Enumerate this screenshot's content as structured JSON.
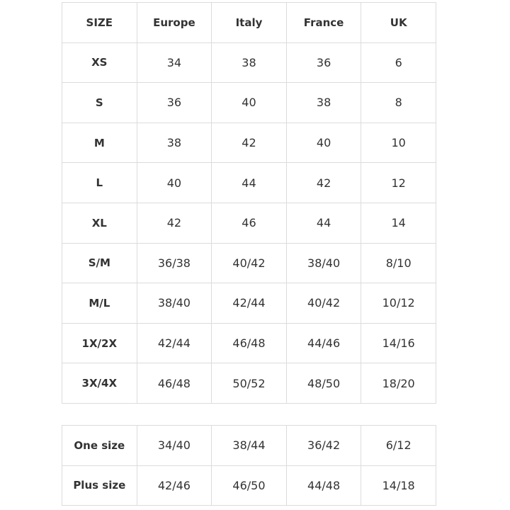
{
  "size_table": {
    "header": [
      "SIZE",
      "Europe",
      "Italy",
      "France",
      "UK"
    ],
    "rows": [
      [
        "XS",
        "34",
        "38",
        "36",
        "6"
      ],
      [
        "S",
        "36",
        "40",
        "38",
        "8"
      ],
      [
        "M",
        "38",
        "42",
        "40",
        "10"
      ],
      [
        "L",
        "40",
        "44",
        "42",
        "12"
      ],
      [
        "XL",
        "42",
        "46",
        "44",
        "14"
      ],
      [
        "S/M",
        "36/38",
        "40/42",
        "38/40",
        "8/10"
      ],
      [
        "M/L",
        "38/40",
        "42/44",
        "40/42",
        "10/12"
      ],
      [
        "1X/2X",
        "42/44",
        "46/48",
        "44/46",
        "14/16"
      ],
      [
        "3X/4X",
        "46/48",
        "50/52",
        "48/50",
        "18/20"
      ]
    ]
  },
  "extra_table": {
    "rows": [
      [
        "One size",
        "34/40",
        "38/44",
        "36/42",
        "6/12"
      ],
      [
        "Plus size",
        "42/46",
        "46/50",
        "44/48",
        "14/18"
      ]
    ]
  }
}
